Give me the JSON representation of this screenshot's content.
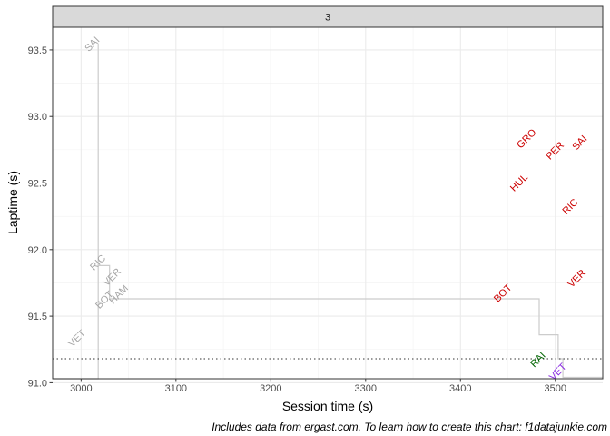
{
  "chart_data": {
    "type": "scatter",
    "facet_label": "3",
    "xlabel": "Session time (s)",
    "ylabel": "Laptime (s)",
    "caption": "Includes data from ergast.com. To learn how to create this chart: f1datajunkie.com",
    "xlim": [
      2970,
      3550
    ],
    "ylim": [
      91.03,
      93.67
    ],
    "x_ticks": [
      3000,
      3100,
      3200,
      3300,
      3400,
      3500
    ],
    "y_ticks": [
      91.0,
      91.5,
      92.0,
      92.5,
      93.0,
      93.5
    ],
    "x_tick_labels": [
      "3000",
      "3100",
      "3200",
      "3300",
      "3400",
      "3500"
    ],
    "y_tick_labels": [
      "91.0",
      "91.5",
      "92.0",
      "92.5",
      "93.0",
      "93.5"
    ],
    "grid": true,
    "reference_line": {
      "y": 91.18,
      "style": "dotted",
      "color": "#333333"
    },
    "step_line": {
      "color": "#cccccc",
      "points": [
        [
          2970,
          91.0
        ],
        [
          3018,
          91.0
        ],
        [
          3018,
          93.55
        ],
        [
          3018,
          91.88
        ],
        [
          3030,
          91.88
        ],
        [
          3030,
          91.63
        ],
        [
          3483,
          91.63
        ],
        [
          3483,
          91.36
        ],
        [
          3503,
          91.36
        ],
        [
          3503,
          91.18
        ],
        [
          3508,
          91.18
        ],
        [
          3508,
          91.04
        ],
        [
          3550,
          91.04
        ]
      ]
    },
    "colors": {
      "grey": "#a6a6a6",
      "red": "#cc0000",
      "green": "#006400",
      "purple": "#8a2be2"
    },
    "points": [
      {
        "label": "SAI",
        "x": 3012,
        "y": 93.54,
        "color": "grey"
      },
      {
        "label": "RIC",
        "x": 3018,
        "y": 91.9,
        "color": "grey"
      },
      {
        "label": "VER",
        "x": 3033,
        "y": 91.79,
        "color": "grey"
      },
      {
        "label": "BOT",
        "x": 3025,
        "y": 91.62,
        "color": "grey"
      },
      {
        "label": "HAM",
        "x": 3040,
        "y": 91.66,
        "color": "grey"
      },
      {
        "label": "VET",
        "x": 2996,
        "y": 91.33,
        "color": "grey"
      },
      {
        "label": "GRO",
        "x": 3470,
        "y": 92.83,
        "color": "red"
      },
      {
        "label": "PER",
        "x": 3500,
        "y": 92.74,
        "color": "red"
      },
      {
        "label": "SAI",
        "x": 3526,
        "y": 92.8,
        "color": "red"
      },
      {
        "label": "HUL",
        "x": 3462,
        "y": 92.5,
        "color": "red"
      },
      {
        "label": "RIC",
        "x": 3516,
        "y": 92.32,
        "color": "red"
      },
      {
        "label": "BOT",
        "x": 3445,
        "y": 91.67,
        "color": "red"
      },
      {
        "label": "VER",
        "x": 3523,
        "y": 91.78,
        "color": "red"
      },
      {
        "label": "RAI",
        "x": 3482,
        "y": 91.17,
        "color": "green"
      },
      {
        "label": "VET",
        "x": 3503,
        "y": 91.08,
        "color": "purple"
      }
    ]
  }
}
